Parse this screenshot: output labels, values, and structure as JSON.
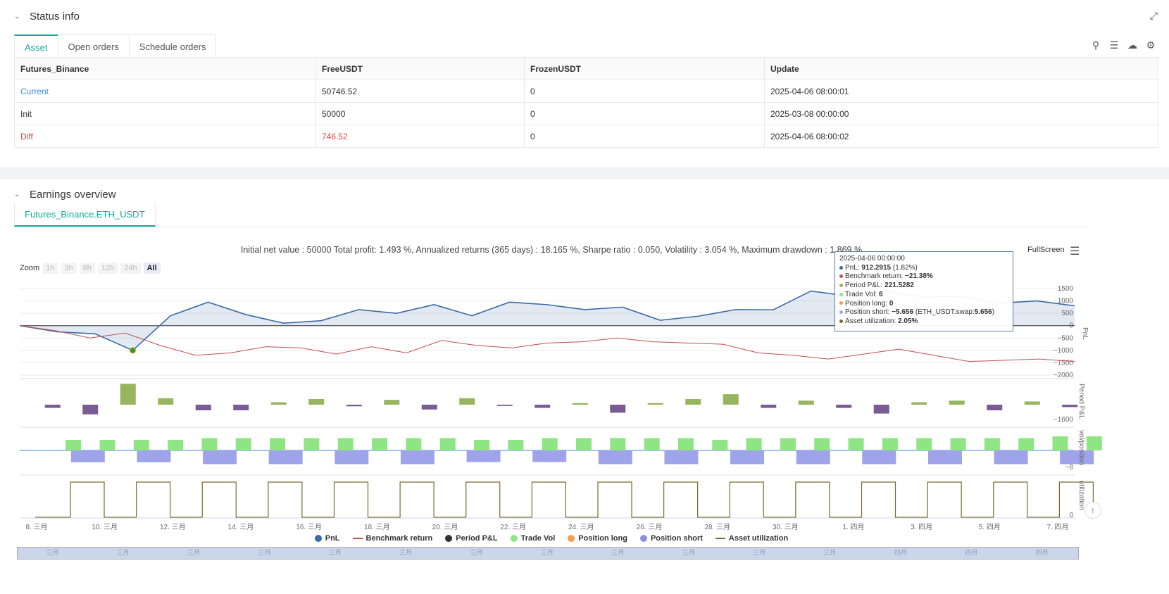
{
  "status": {
    "title": "Status info",
    "tabs": [
      "Asset",
      "Open orders",
      "Schedule orders"
    ],
    "table": {
      "headers": [
        "Futures_Binance",
        "FreeUSDT",
        "FrozenUSDT",
        "Update"
      ],
      "rows": [
        [
          "Current",
          "50746.52",
          "0",
          "2025-04-06 08:00:01"
        ],
        [
          "Init",
          "50000",
          "0",
          "2025-03-08 00:00:00"
        ],
        [
          "Diff",
          "746.52",
          "0",
          "2025-04-06 08:00:02"
        ]
      ]
    }
  },
  "earnings": {
    "title": "Earnings overview",
    "tab": "Futures_Binance.ETH_USDT",
    "summary": "Initial net value : 50000 Total profit: 1.493 %, Annualized returns (365 days) : 18.165 %, Sharpe ratio : 0.050, Volatility : 3.054 %, Maximum drawdown : 1.869 %",
    "fullscreen": "FullScreen",
    "zoom_label": "Zoom",
    "zoom_buttons": [
      "1h",
      "3h",
      "8h",
      "12h",
      "24h",
      "All"
    ],
    "tooltip": {
      "date": "2025-04-06 00:00:00",
      "pnl_label": "PnL:",
      "pnl_value": "912.2915",
      "pnl_pct": "(1.82%)",
      "bench_label": "Benchmark return:",
      "bench_value": "−21.38%",
      "period_label": "Period P&L:",
      "period_value": "221.5282",
      "vol_label": "Trade Vol:",
      "vol_value": "6",
      "long_label": "Position long:",
      "long_value": "0",
      "short_label": "Position short:",
      "short_value": "−5.656",
      "short_extra": "(ETH_USDT.swap:",
      "short_extra_value": "5.656",
      "short_extra_close": ")",
      "util_label": "Asset utilization:",
      "util_value": "2.05%"
    },
    "legend": [
      "PnL",
      "Benchmark return",
      "Period P&L",
      "Trade Vol",
      "Position long",
      "Position short",
      "Asset utilization"
    ],
    "navigator_labels": [
      "三月",
      "三月",
      "三月",
      "三月",
      "三月",
      "三月",
      "三月",
      "三月",
      "三月",
      "三月",
      "三月",
      "三月",
      "四月",
      "四月",
      "四月"
    ]
  },
  "chart_data": {
    "type": "line",
    "x_labels": [
      "8. 三月",
      "10. 三月",
      "12. 三月",
      "14. 三月",
      "16. 三月",
      "18. 三月",
      "20. 三月",
      "22. 三月",
      "24. 三月",
      "26. 三月",
      "28. 三月",
      "30. 三月",
      "1. 四月",
      "3. 四月",
      "5. 四月",
      "7. 四月"
    ],
    "pnl_axis_ticks": [
      "1500",
      "1000",
      "500",
      "0",
      "−500",
      "−1000",
      "−1500",
      "−2000"
    ],
    "pnl_ylim": [
      -2000,
      1700
    ],
    "axis_titles": [
      "PnL",
      "Period P&L",
      "vol/position",
      "utilization"
    ],
    "period_axis_tick": "−1600",
    "position_axis_tick": "−8",
    "util_axis_tick": "0",
    "series": [
      {
        "name": "PnL",
        "color": "#3b6aa8",
        "values": [
          0,
          -250,
          -330,
          -1000,
          400,
          950,
          450,
          100,
          200,
          650,
          500,
          850,
          400,
          950,
          850,
          650,
          750,
          220,
          380,
          650,
          640,
          1400,
          1200,
          1400,
          1150,
          1200,
          912,
          1000,
          800
        ]
      },
      {
        "name": "Benchmark return",
        "color": "#c0504d",
        "values": [
          0,
          -200,
          -500,
          -300,
          -800,
          -1200,
          -1100,
          -850,
          -900,
          -1150,
          -850,
          -1100,
          -600,
          -800,
          -900,
          -700,
          -650,
          -500,
          -650,
          -700,
          -750,
          -1100,
          -1200,
          -1350,
          -1150,
          -950,
          -1200,
          -1450,
          -1400,
          -1350,
          -1450
        ]
      },
      {
        "name": "Period P&L",
        "color_pos": "#97b55e",
        "color_neg": "#7a5c94",
        "values": [
          -200,
          -600,
          1300,
          400,
          -350,
          -350,
          150,
          350,
          -100,
          300,
          -300,
          400,
          -80,
          -200,
          100,
          -500,
          100,
          350,
          650,
          -200,
          250,
          -200,
          -550,
          150,
          250,
          -350,
          200,
          -150
        ]
      },
      {
        "name": "Trade Vol",
        "color": "#8fe584",
        "values": [
          6,
          6,
          6,
          6,
          7,
          7,
          7,
          7,
          7,
          7,
          7,
          7,
          6,
          6,
          7,
          7,
          7,
          7,
          7,
          6,
          7,
          7,
          7,
          7,
          7,
          7,
          7,
          7,
          7,
          8,
          8
        ]
      },
      {
        "name": "Position short",
        "color": "#9fa3ea",
        "values": [
          -5.6,
          -5.6,
          -6.5,
          -6.5,
          -6.5,
          -6.5,
          -5.5,
          -5.5,
          -6.5,
          -6.5,
          -6.5,
          -6.5,
          -6.5,
          -6.5,
          -6.5,
          -6.5
        ]
      },
      {
        "name": "Asset utilization",
        "color": "#7a6a2a",
        "values": [
          1,
          1,
          1,
          1,
          1,
          1,
          1,
          1,
          1,
          1,
          1,
          1,
          1,
          1,
          1,
          1
        ]
      }
    ]
  },
  "colors": {
    "accent": "#13a89e",
    "link": "#3c8ad8",
    "negative": "#e0453b"
  }
}
